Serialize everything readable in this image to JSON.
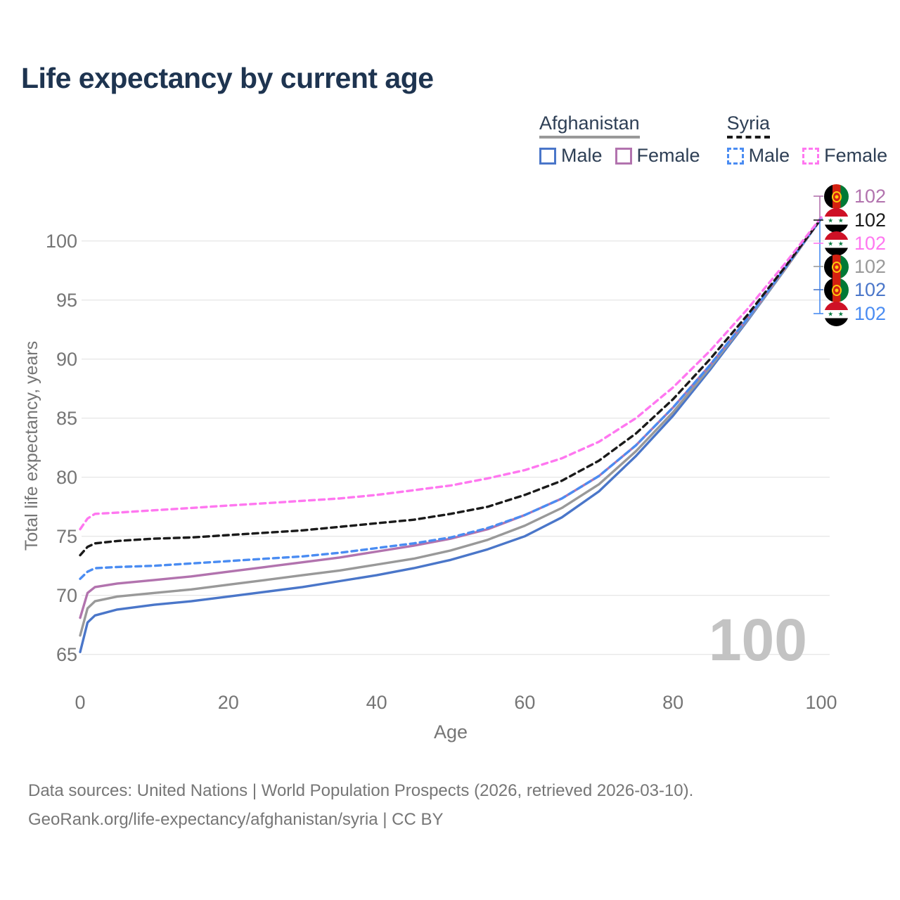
{
  "title": "Life expectancy by current age",
  "watermark": "100",
  "footer": {
    "line1": "Data sources: United Nations | World Population Prospects (2026, retrieved 2026-03-10).",
    "line2": "GeoRank.org/life-expectancy/afghanistan/syria | CC BY"
  },
  "legend": {
    "groups": [
      {
        "name": "Afghanistan",
        "underline_style": "solid",
        "underline_color": "#999999",
        "items": [
          {
            "label": "Male",
            "color": "#4a76c9",
            "dashed": false
          },
          {
            "label": "Female",
            "color": "#b273ae",
            "dashed": false
          }
        ]
      },
      {
        "name": "Syria",
        "underline_style": "dashed",
        "underline_color": "#1a1a1a",
        "items": [
          {
            "label": "Male",
            "color": "#4a8cf2",
            "dashed": true
          },
          {
            "label": "Female",
            "color": "#ff77f0",
            "dashed": true
          }
        ]
      }
    ]
  },
  "chart_data": {
    "type": "line",
    "title": "Life expectancy by current age",
    "xlabel": "Age",
    "ylabel": "Total life expectancy, years",
    "xlim": [
      0,
      100
    ],
    "ylim": [
      65,
      102
    ],
    "x_ticks": [
      0,
      20,
      40,
      60,
      80,
      100
    ],
    "y_ticks": [
      65,
      70,
      75,
      80,
      85,
      90,
      95,
      100
    ],
    "grid": "horizontal",
    "legend_position": "top-right",
    "x": [
      0,
      1,
      2,
      5,
      10,
      15,
      20,
      25,
      30,
      35,
      40,
      45,
      50,
      55,
      60,
      65,
      70,
      75,
      80,
      85,
      90,
      95,
      100
    ],
    "series": [
      {
        "id": "afghanistan-male",
        "name": "Afghanistan Male",
        "color": "#4a76c9",
        "dashed": false,
        "values": [
          65.2,
          67.7,
          68.3,
          68.8,
          69.2,
          69.5,
          69.9,
          70.3,
          70.7,
          71.2,
          71.7,
          72.3,
          73.0,
          73.9,
          75.0,
          76.6,
          78.8,
          81.8,
          85.2,
          89.1,
          93.2,
          97.5,
          101.9
        ]
      },
      {
        "id": "afghanistan-both",
        "name": "Afghanistan Both sexes",
        "color": "#999999",
        "dashed": false,
        "values": [
          66.6,
          68.9,
          69.5,
          69.9,
          70.2,
          70.5,
          70.9,
          71.3,
          71.7,
          72.1,
          72.6,
          73.1,
          73.8,
          74.7,
          75.9,
          77.4,
          79.4,
          82.2,
          85.5,
          89.3,
          93.3,
          97.5,
          101.9
        ]
      },
      {
        "id": "afghanistan-female",
        "name": "Afghanistan Female",
        "color": "#b273ae",
        "dashed": false,
        "values": [
          68.1,
          70.2,
          70.7,
          71.0,
          71.3,
          71.6,
          72.0,
          72.4,
          72.8,
          73.2,
          73.7,
          74.2,
          74.8,
          75.6,
          76.8,
          78.2,
          80.1,
          82.7,
          85.9,
          89.5,
          93.4,
          97.6,
          101.9
        ]
      },
      {
        "id": "syria-male",
        "name": "Syria Male",
        "color": "#4a8cf2",
        "dashed": true,
        "values": [
          71.4,
          72.0,
          72.3,
          72.4,
          72.5,
          72.7,
          72.9,
          73.1,
          73.3,
          73.6,
          74.0,
          74.4,
          74.9,
          75.7,
          76.8,
          78.2,
          80.1,
          82.7,
          85.9,
          89.5,
          93.4,
          97.6,
          101.9
        ]
      },
      {
        "id": "syria-both",
        "name": "Syria Both sexes",
        "color": "#1a1a1a",
        "dashed": true,
        "values": [
          73.4,
          74.1,
          74.4,
          74.6,
          74.8,
          74.9,
          75.1,
          75.3,
          75.5,
          75.8,
          76.1,
          76.4,
          76.9,
          77.5,
          78.5,
          79.7,
          81.4,
          83.7,
          86.6,
          90.0,
          93.7,
          97.7,
          101.9
        ]
      },
      {
        "id": "syria-female",
        "name": "Syria Female",
        "color": "#ff77f0",
        "dashed": true,
        "values": [
          75.6,
          76.5,
          76.9,
          77.0,
          77.2,
          77.4,
          77.6,
          77.8,
          78.0,
          78.2,
          78.5,
          78.9,
          79.3,
          79.9,
          80.6,
          81.6,
          83.0,
          85.0,
          87.6,
          90.7,
          94.2,
          98.0,
          102.0
        ]
      }
    ],
    "end_labels": [
      {
        "flag": "afghanistan",
        "series": "afghanistan-female",
        "text": "102",
        "color": "#b273ae"
      },
      {
        "flag": "syria",
        "series": "syria-both",
        "text": "102",
        "color": "#1a1a1a"
      },
      {
        "flag": "syria",
        "series": "syria-female",
        "text": "102",
        "color": "#ff77f0"
      },
      {
        "flag": "afghanistan",
        "series": "afghanistan-both",
        "text": "102",
        "color": "#999999"
      },
      {
        "flag": "afghanistan",
        "series": "afghanistan-male",
        "text": "102",
        "color": "#4a76c9"
      },
      {
        "flag": "syria",
        "series": "syria-male",
        "text": "102",
        "color": "#4a8cf2"
      }
    ]
  }
}
